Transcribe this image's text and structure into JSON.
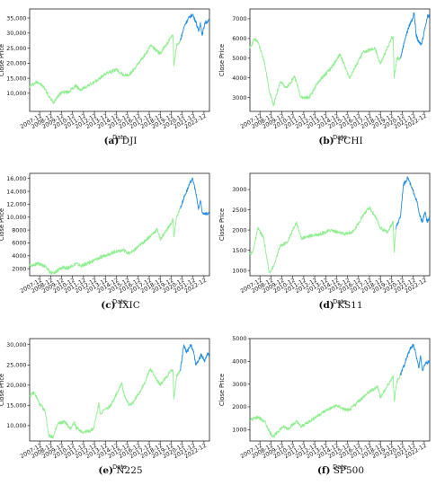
{
  "theme": {
    "train_color": "#90ee90",
    "test_color": "#1f8ae0",
    "frame_color": "#000000"
  },
  "chart_data": [
    {
      "type": "line",
      "letter": "(a)",
      "caption": "DJI",
      "xlabel": "Date",
      "ylabel": "Close Price",
      "x_ticks": [
        "2007-12",
        "2008-12",
        "2009-12",
        "2010-12",
        "2011-12",
        "2012-12",
        "2013-12",
        "2014-12",
        "2015-12",
        "2016-12",
        "2017-12",
        "2018-12",
        "2019-12",
        "2020-12",
        "2021-12",
        "2022-12"
      ],
      "y_ticks": [
        10000,
        15000,
        20000,
        25000,
        30000,
        35000
      ],
      "y_tick_labels": [
        "10,000",
        "15,000",
        "20,000",
        "25,000",
        "30,000",
        "35,000"
      ],
      "xlim": [
        "2007-01",
        "2023-06"
      ],
      "ylim": [
        4000,
        38000
      ],
      "series": [
        {
          "role": "train",
          "x": [
            "2007-01",
            "2007-07",
            "2007-10",
            "2008-06",
            "2008-10",
            "2009-03",
            "2009-06",
            "2010-01",
            "2010-07",
            "2011-04",
            "2011-08",
            "2012-06",
            "2013-01",
            "2013-12",
            "2014-12",
            "2015-08",
            "2016-02",
            "2016-12",
            "2017-12",
            "2018-01",
            "2018-12",
            "2019-12",
            "2020-02",
            "2020-03",
            "2020-06",
            "2020-10"
          ],
          "y": [
            12400,
            13400,
            13900,
            11500,
            8900,
            6900,
            8400,
            10500,
            10300,
            12600,
            11000,
            12800,
            13800,
            16500,
            17800,
            16000,
            16000,
            19800,
            24700,
            26100,
            23200,
            28500,
            29300,
            19200,
            25800,
            27500
          ]
        },
        {
          "role": "test",
          "x": [
            "2020-10",
            "2021-03",
            "2021-08",
            "2021-12",
            "2022-01",
            "2022-03",
            "2022-06",
            "2022-08",
            "2022-10",
            "2023-01",
            "2023-04",
            "2023-06"
          ],
          "y": [
            27500,
            32800,
            35300,
            36200,
            35000,
            34000,
            30500,
            33500,
            29200,
            33500,
            33800,
            34200
          ]
        }
      ]
    },
    {
      "type": "line",
      "letter": "(b)",
      "caption": "FCHI",
      "xlabel": "Date",
      "ylabel": "Close Price",
      "x_ticks": [
        "2007-12",
        "2008-12",
        "2009-12",
        "2010-12",
        "2011-12",
        "2012-12",
        "2013-12",
        "2014-12",
        "2015-12",
        "2016-12",
        "2017-12",
        "2018-12",
        "2019-12",
        "2020-12",
        "2021-12",
        "2022-12"
      ],
      "y_ticks": [
        3000,
        4000,
        5000,
        6000,
        7000
      ],
      "y_tick_labels": [
        "3000",
        "4000",
        "5000",
        "6000",
        "7000"
      ],
      "xlim": [
        "2007-01",
        "2023-06"
      ],
      "ylim": [
        2300,
        7500
      ],
      "series": [
        {
          "role": "train",
          "x": [
            "2007-01",
            "2007-06",
            "2007-10",
            "2008-05",
            "2008-10",
            "2009-03",
            "2009-10",
            "2010-06",
            "2011-02",
            "2011-09",
            "2012-06",
            "2013-04",
            "2014-06",
            "2015-04",
            "2016-02",
            "2017-05",
            "2018-06",
            "2018-12",
            "2019-12",
            "2020-02",
            "2020-03",
            "2020-06",
            "2020-10"
          ],
          "y": [
            5500,
            6000,
            5800,
            4800,
            3400,
            2600,
            3800,
            3500,
            4100,
            3000,
            3000,
            3800,
            4500,
            5200,
            4000,
            5300,
            5500,
            4700,
            6000,
            6100,
            4000,
            5000,
            5000
          ]
        },
        {
          "role": "test",
          "x": [
            "2020-10",
            "2021-03",
            "2021-08",
            "2021-11",
            "2022-01",
            "2022-03",
            "2022-06",
            "2022-09",
            "2023-01",
            "2023-04",
            "2023-06"
          ],
          "y": [
            5000,
            6000,
            6700,
            7000,
            7300,
            6200,
            5800,
            5700,
            6600,
            7200,
            7100
          ]
        }
      ]
    },
    {
      "type": "line",
      "letter": "(c)",
      "caption": "IXIC",
      "xlabel": "Date",
      "ylabel": "Close Price",
      "x_ticks": [
        "2007-12",
        "2008-12",
        "2009-12",
        "2010-12",
        "2011-12",
        "2012-12",
        "2013-12",
        "2014-12",
        "2015-12",
        "2016-12",
        "2017-12",
        "2018-12",
        "2019-12",
        "2020-12",
        "2021-12",
        "2022-12"
      ],
      "y_ticks": [
        2000,
        4000,
        6000,
        8000,
        10000,
        12000,
        14000,
        16000
      ],
      "y_tick_labels": [
        "2000",
        "4000",
        "6000",
        "8000",
        "10,000",
        "12,000",
        "14,000",
        "16,000"
      ],
      "xlim": [
        "2007-01",
        "2023-06"
      ],
      "ylim": [
        900,
        16800
      ],
      "series": [
        {
          "role": "train",
          "x": [
            "2007-01",
            "2007-10",
            "2008-06",
            "2008-11",
            "2009-03",
            "2010-01",
            "2010-07",
            "2011-04",
            "2011-09",
            "2012-09",
            "2013-12",
            "2014-12",
            "2015-08",
            "2016-02",
            "2016-12",
            "2017-12",
            "2018-09",
            "2018-12",
            "2019-12",
            "2020-02",
            "2020-03",
            "2020-06",
            "2020-10"
          ],
          "y": [
            2450,
            2800,
            2400,
            1500,
            1300,
            2200,
            2100,
            2800,
            2400,
            3100,
            4100,
            4700,
            4900,
            4300,
            5400,
            6900,
            8100,
            6500,
            9000,
            9700,
            6900,
            10000,
            11300
          ]
        },
        {
          "role": "test",
          "x": [
            "2020-10",
            "2021-03",
            "2021-08",
            "2021-11",
            "2022-01",
            "2022-03",
            "2022-06",
            "2022-08",
            "2022-10",
            "2023-01",
            "2023-06"
          ],
          "y": [
            11300,
            13400,
            15000,
            16000,
            15200,
            13800,
            11200,
            12600,
            10700,
            10600,
            10500
          ]
        }
      ]
    },
    {
      "type": "line",
      "letter": "(d)",
      "caption": "KS11",
      "xlabel": "Date",
      "ylabel": "Close Price",
      "x_ticks": [
        "2007-12",
        "2008-12",
        "2009-12",
        "2010-12",
        "2011-12",
        "2012-12",
        "2013-12",
        "2014-12",
        "2015-12",
        "2016-12",
        "2017-12",
        "2018-12",
        "2019-12",
        "2020-12",
        "2021-12",
        "2022-12"
      ],
      "y_ticks": [
        1000,
        1500,
        2000,
        2500,
        3000
      ],
      "y_tick_labels": [
        "1000",
        "1500",
        "2000",
        "2500",
        "3000"
      ],
      "xlim": [
        "2007-01",
        "2023-06"
      ],
      "ylim": [
        870,
        3400
      ],
      "series": [
        {
          "role": "train",
          "x": [
            "2007-01",
            "2007-04",
            "2007-10",
            "2008-04",
            "2008-10",
            "2009-03",
            "2009-10",
            "2010-06",
            "2011-04",
            "2011-09",
            "2012-06",
            "2013-06",
            "2014-06",
            "2015-08",
            "2016-06",
            "2017-06",
            "2017-12",
            "2018-06",
            "2018-12",
            "2019-08",
            "2020-02",
            "2020-03",
            "2020-05"
          ],
          "y": [
            1400,
            1450,
            2050,
            1800,
            950,
            1100,
            1600,
            1700,
            2200,
            1800,
            1850,
            1900,
            2000,
            1900,
            1950,
            2400,
            2550,
            2350,
            2050,
            1950,
            2200,
            1450,
            2050
          ]
        },
        {
          "role": "test",
          "x": [
            "2020-05",
            "2020-10",
            "2021-01",
            "2021-06",
            "2021-10",
            "2022-01",
            "2022-04",
            "2022-07",
            "2022-10",
            "2023-01",
            "2023-03",
            "2023-06"
          ],
          "y": [
            2050,
            2350,
            3100,
            3300,
            3050,
            2900,
            2700,
            2350,
            2200,
            2450,
            2200,
            2300
          ]
        }
      ]
    },
    {
      "type": "line",
      "letter": "(e)",
      "caption": "N225",
      "xlabel": "Date",
      "ylabel": "Close Price",
      "x_ticks": [
        "2007-12",
        "2008-12",
        "2009-12",
        "2010-12",
        "2011-12",
        "2012-12",
        "2013-12",
        "2014-12",
        "2015-12",
        "2016-12",
        "2017-12",
        "2018-12",
        "2019-12",
        "2020-12",
        "2021-12",
        "2022-12"
      ],
      "y_ticks": [
        10000,
        15000,
        20000,
        25000,
        30000
      ],
      "y_tick_labels": [
        "10,000",
        "15,000",
        "20,000",
        "25,000",
        "30,000"
      ],
      "xlim": [
        "2007-01",
        "2023-06"
      ],
      "ylim": [
        6200,
        31500
      ],
      "series": [
        {
          "role": "train",
          "x": [
            "2007-01",
            "2007-06",
            "2007-12",
            "2008-06",
            "2008-10",
            "2009-03",
            "2009-08",
            "2010-04",
            "2010-09",
            "2011-02",
            "2011-04",
            "2011-11",
            "2012-06",
            "2012-11",
            "2013-05",
            "2013-06",
            "2014-06",
            "2015-06",
            "2015-08",
            "2016-02",
            "2016-06",
            "2017-06",
            "2018-01",
            "2018-12",
            "2019-12",
            "2020-02",
            "2020-03",
            "2020-06",
            "2020-10"
          ],
          "y": [
            17300,
            18200,
            15300,
            13500,
            7500,
            7300,
            10500,
            11000,
            9100,
            10800,
            9500,
            8400,
            8600,
            9200,
            15600,
            13000,
            15000,
            20600,
            18000,
            15000,
            15600,
            20000,
            24000,
            20000,
            23600,
            23400,
            16500,
            22500,
            23500
          ]
        },
        {
          "role": "test",
          "x": [
            "2020-10",
            "2021-02",
            "2021-05",
            "2021-09",
            "2021-12",
            "2022-03",
            "2022-06",
            "2022-09",
            "2023-01",
            "2023-04",
            "2023-06"
          ],
          "y": [
            23500,
            30000,
            28000,
            30000,
            28800,
            25000,
            26000,
            27500,
            26000,
            28000,
            27000
          ]
        }
      ]
    },
    {
      "type": "line",
      "letter": "(f)",
      "caption": "SP500",
      "xlabel": "Date",
      "ylabel": "Close Price",
      "x_ticks": [
        "2007-12",
        "2008-12",
        "2009-12",
        "2010-12",
        "2011-12",
        "2012-12",
        "2013-12",
        "2014-12",
        "2015-12",
        "2016-12",
        "2017-12",
        "2018-12",
        "2019-12",
        "2020-12",
        "2021-12",
        "2022-12"
      ],
      "y_ticks": [
        1000,
        2000,
        3000,
        4000,
        5000
      ],
      "y_tick_labels": [
        "1000",
        "2000",
        "3000",
        "4000",
        "5000"
      ],
      "xlim": [
        "2007-01",
        "2023-06"
      ],
      "ylim": [
        500,
        5000
      ],
      "series": [
        {
          "role": "train",
          "x": [
            "2007-01",
            "2007-10",
            "2008-06",
            "2008-11",
            "2009-03",
            "2010-01",
            "2010-07",
            "2011-04",
            "2011-09",
            "2012-09",
            "2013-12",
            "2014-12",
            "2015-08",
            "2016-02",
            "2016-12",
            "2017-12",
            "2018-09",
            "2018-12",
            "2019-12",
            "2020-02",
            "2020-03",
            "2020-06",
            "2020-10"
          ],
          "y": [
            1420,
            1560,
            1300,
            850,
            700,
            1130,
            1050,
            1360,
            1120,
            1450,
            1840,
            2060,
            1900,
            1850,
            2250,
            2670,
            2900,
            2400,
            3230,
            3380,
            2240,
            3100,
            3400
          ]
        },
        {
          "role": "test",
          "x": [
            "2020-10",
            "2021-03",
            "2021-08",
            "2021-12",
            "2022-01",
            "2022-03",
            "2022-06",
            "2022-08",
            "2022-10",
            "2023-01",
            "2023-06"
          ],
          "y": [
            3400,
            3950,
            4500,
            4750,
            4600,
            4300,
            3700,
            4250,
            3600,
            3900,
            4000
          ]
        }
      ]
    }
  ]
}
